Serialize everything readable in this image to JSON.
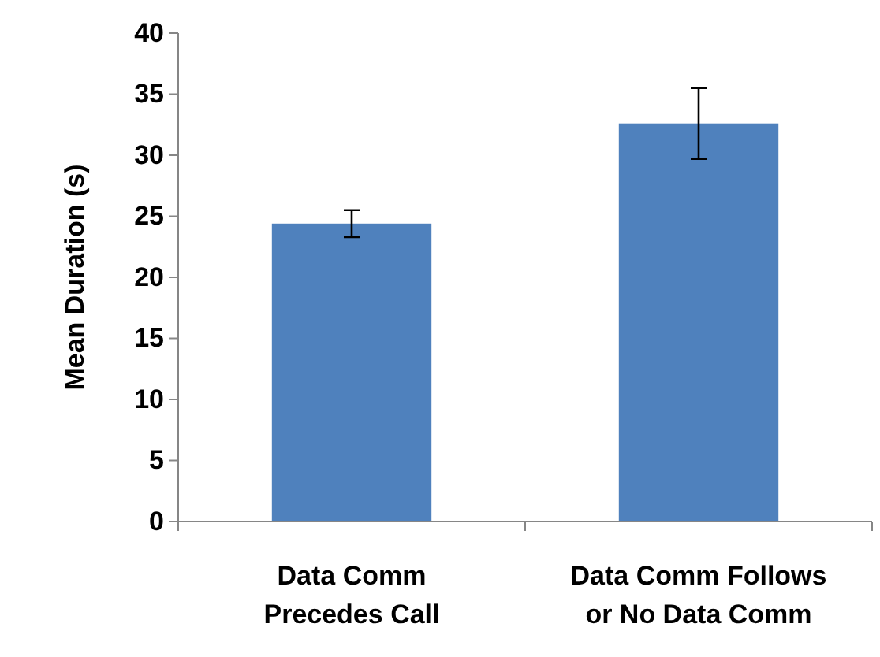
{
  "chart_data": {
    "type": "bar",
    "ylabel": "Mean Duration (s)",
    "categories": [
      "Data Comm Precedes Call",
      "Data Comm Follows or No Data Comm"
    ],
    "values": [
      24.4,
      32.6
    ],
    "errors": [
      1.1,
      2.9
    ],
    "color": "#4f81bd",
    "ylim": [
      0,
      40
    ],
    "yticks": [
      0,
      5,
      10,
      15,
      20,
      25,
      30,
      35,
      40
    ],
    "grid": false
  }
}
